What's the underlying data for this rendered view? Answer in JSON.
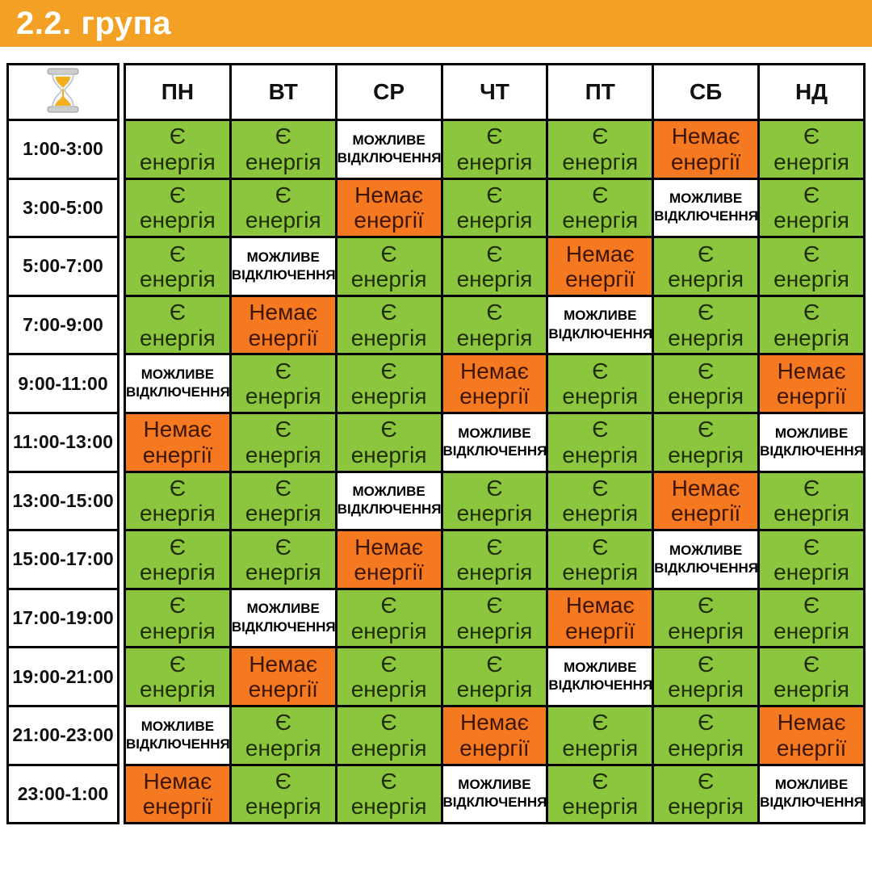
{
  "title": "2.2. група",
  "colors": {
    "page_bg": "#FFFFFF",
    "title_bar": "#F2A124",
    "grid_line": "#000000",
    "title_text": "#FFFFFF"
  },
  "statuses": {
    "on": {
      "code": "on",
      "label": "Є\nенергія",
      "bg": "#8CC63E",
      "text_color": "#1F2E04"
    },
    "maybe": {
      "code": "maybe",
      "label": "МОЖЛИВЕ\nВІДКЛЮЧЕННЯ",
      "bg": "#FFFFFF",
      "text_color": "#000000"
    },
    "off": {
      "code": "off",
      "label": "Немає\nенергії",
      "bg": "#F47920",
      "text_color": "#3F1503"
    }
  },
  "chart_data": {
    "type": "table",
    "title": "2.2. група",
    "corner_icon": "hourglass-icon",
    "columns": [
      "ПН",
      "ВТ",
      "СР",
      "ЧТ",
      "ПТ",
      "СБ",
      "НД"
    ],
    "status_legend": {
      "on": "Є енергія",
      "maybe": "МОЖЛИВЕ ВІДКЛЮЧЕННЯ",
      "off": "Немає енергії"
    },
    "rows": [
      {
        "time": "1:00-3:00",
        "values": [
          "on",
          "on",
          "maybe",
          "on",
          "on",
          "off",
          "on"
        ]
      },
      {
        "time": "3:00-5:00",
        "values": [
          "on",
          "on",
          "off",
          "on",
          "on",
          "maybe",
          "on"
        ]
      },
      {
        "time": "5:00-7:00",
        "values": [
          "on",
          "maybe",
          "on",
          "on",
          "off",
          "on",
          "on"
        ]
      },
      {
        "time": "7:00-9:00",
        "values": [
          "on",
          "off",
          "on",
          "on",
          "maybe",
          "on",
          "on"
        ]
      },
      {
        "time": "9:00-11:00",
        "values": [
          "maybe",
          "on",
          "on",
          "off",
          "on",
          "on",
          "off"
        ]
      },
      {
        "time": "11:00-13:00",
        "values": [
          "off",
          "on",
          "on",
          "maybe",
          "on",
          "on",
          "maybe"
        ]
      },
      {
        "time": "13:00-15:00",
        "values": [
          "on",
          "on",
          "maybe",
          "on",
          "on",
          "off",
          "on"
        ]
      },
      {
        "time": "15:00-17:00",
        "values": [
          "on",
          "on",
          "off",
          "on",
          "on",
          "maybe",
          "on"
        ]
      },
      {
        "time": "17:00-19:00",
        "values": [
          "on",
          "maybe",
          "on",
          "on",
          "off",
          "on",
          "on"
        ]
      },
      {
        "time": "19:00-21:00",
        "values": [
          "on",
          "off",
          "on",
          "on",
          "maybe",
          "on",
          "on"
        ]
      },
      {
        "time": "21:00-23:00",
        "values": [
          "maybe",
          "on",
          "on",
          "off",
          "on",
          "on",
          "off"
        ]
      },
      {
        "time": "23:00-1:00",
        "values": [
          "off",
          "on",
          "on",
          "maybe",
          "on",
          "on",
          "maybe"
        ]
      }
    ]
  }
}
